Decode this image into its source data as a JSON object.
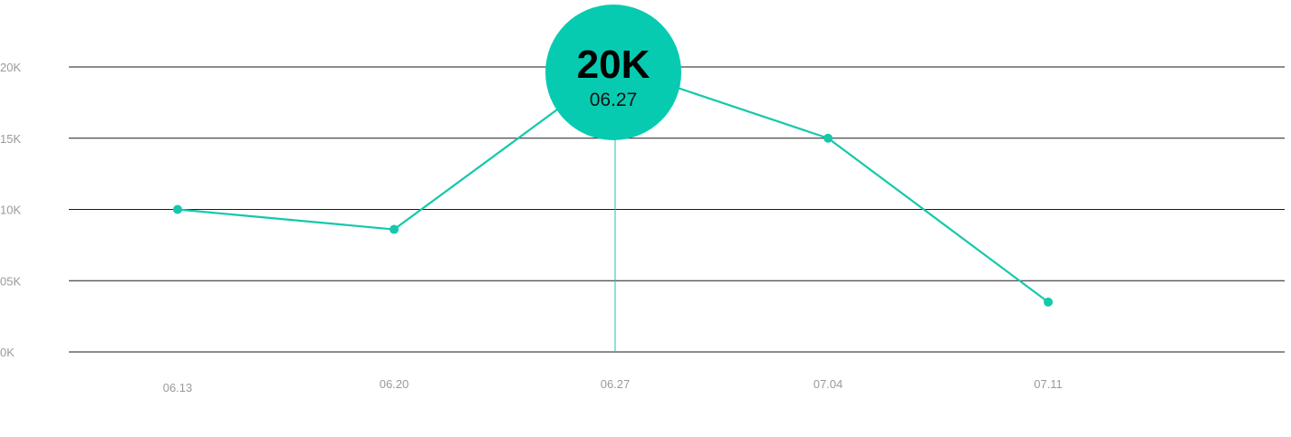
{
  "chart_data": {
    "type": "line",
    "categories": [
      "06.13",
      "06.20",
      "06.27",
      "07.04",
      "07.11"
    ],
    "series": [
      {
        "values": [
          10000,
          8600,
          20000,
          15000,
          3500
        ]
      }
    ],
    "y_tick_labels": [
      "0K",
      "05K",
      "10K",
      "15K",
      "20K"
    ],
    "y_tick_values": [
      0,
      5000,
      10000,
      15000,
      20000
    ],
    "ylim": [
      0,
      20000
    ],
    "title": "",
    "xlabel": "",
    "ylabel": "",
    "grid": "horizontal",
    "highlight": {
      "index": 2,
      "value_label": "20K",
      "date_label": "06.27"
    },
    "colors": {
      "line": "#13c8ab",
      "badge": "#07cbb0",
      "grid": "#1a1a1a",
      "tick": "#9a9a9a"
    }
  }
}
